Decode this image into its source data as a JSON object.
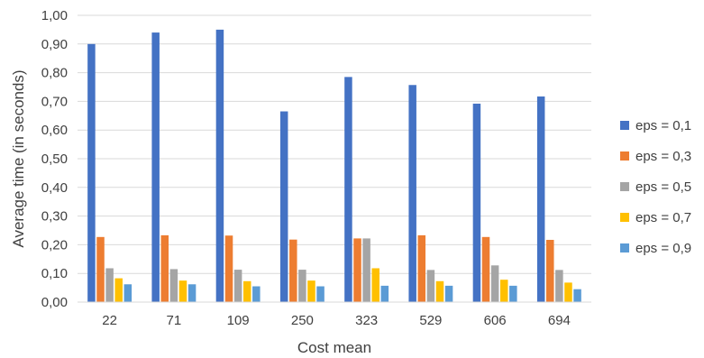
{
  "chart_data": {
    "type": "bar",
    "title": "",
    "xlabel": "Cost mean",
    "ylabel": "Average time (in seconds)",
    "ylim": [
      0,
      1
    ],
    "yticks": [
      "0,00",
      "0,10",
      "0,20",
      "0,30",
      "0,40",
      "0,50",
      "0,60",
      "0,70",
      "0,80",
      "0,90",
      "1,00"
    ],
    "grid": true,
    "legend_position": "right",
    "categories": [
      "22",
      "71",
      "109",
      "250",
      "323",
      "529",
      "606",
      "694"
    ],
    "series": [
      {
        "name": "eps = 0,1",
        "color": "#4472C4",
        "values": [
          0.9,
          0.94,
          0.95,
          0.665,
          0.785,
          0.757,
          0.692,
          0.717
        ]
      },
      {
        "name": "eps = 0,3",
        "color": "#ED7D31",
        "values": [
          0.227,
          0.233,
          0.232,
          0.218,
          0.222,
          0.233,
          0.227,
          0.217
        ]
      },
      {
        "name": "eps = 0,5",
        "color": "#A5A5A5",
        "values": [
          0.118,
          0.115,
          0.113,
          0.113,
          0.222,
          0.112,
          0.128,
          0.112
        ]
      },
      {
        "name": "eps = 0,7",
        "color": "#FFC000",
        "values": [
          0.083,
          0.075,
          0.073,
          0.075,
          0.118,
          0.073,
          0.078,
          0.068
        ]
      },
      {
        "name": "eps = 0,9",
        "color": "#5B9BD5",
        "values": [
          0.062,
          0.062,
          0.055,
          0.055,
          0.057,
          0.057,
          0.057,
          0.045
        ]
      }
    ]
  }
}
